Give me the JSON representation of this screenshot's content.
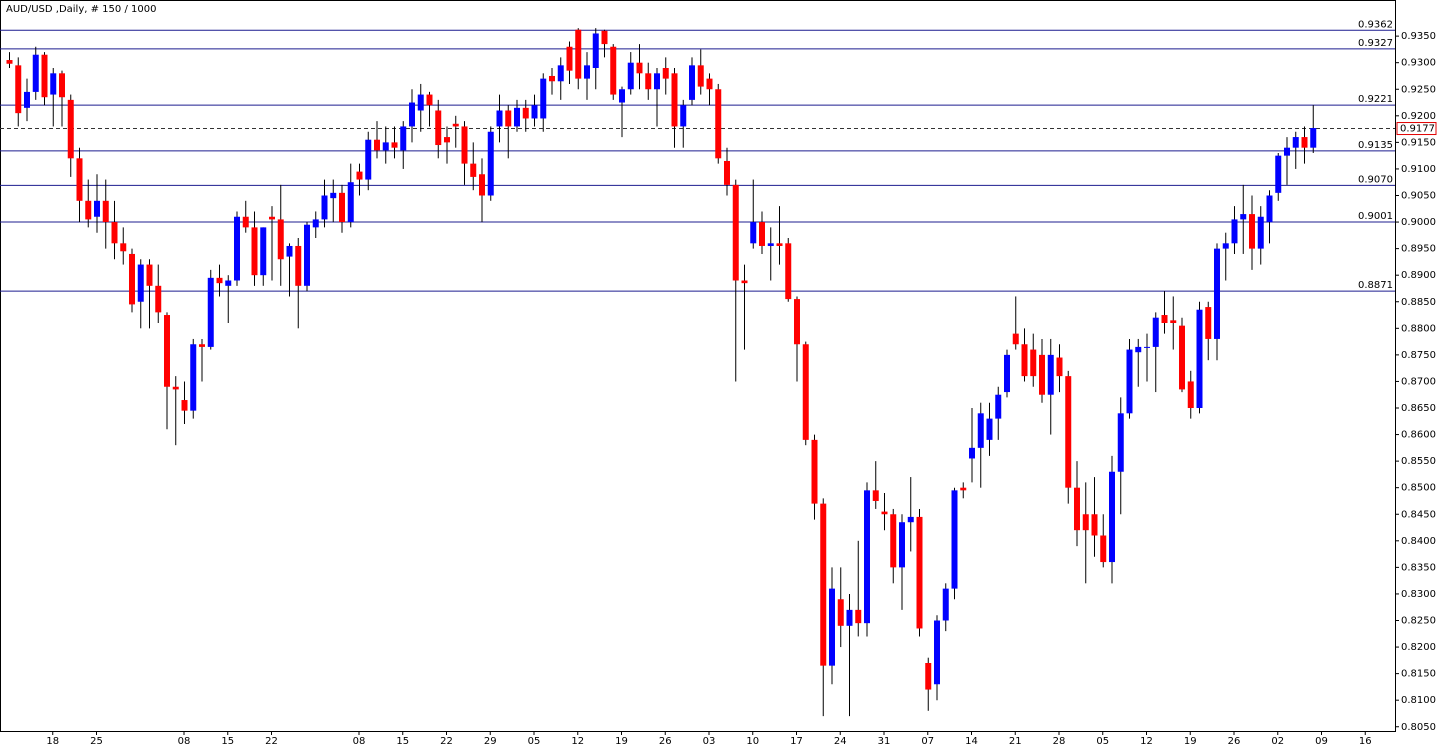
{
  "chart_data": {
    "type": "candlestick",
    "title": "AUD/USD ,Daily, # 150 / 1000",
    "categories": [
      null,
      null,
      null,
      null,
      null,
      "18",
      null,
      null,
      null,
      null,
      "25",
      null,
      null,
      null,
      null,
      null,
      null,
      null,
      null,
      null,
      "08",
      null,
      null,
      null,
      null,
      "15",
      null,
      null,
      null,
      null,
      "22",
      null,
      null,
      null,
      null,
      null,
      null,
      null,
      null,
      null,
      "08",
      null,
      null,
      null,
      null,
      "15",
      null,
      null,
      null,
      null,
      "22",
      null,
      null,
      null,
      null,
      "29",
      null,
      null,
      null,
      null,
      "05",
      null,
      null,
      null,
      null,
      "12",
      null,
      null,
      null,
      null,
      "19",
      null,
      null,
      null,
      null,
      "26",
      null,
      null,
      null,
      null,
      "03",
      null,
      null,
      null,
      null,
      "10",
      null,
      null,
      null,
      null,
      "17",
      null,
      null,
      null,
      null,
      "24",
      null,
      null,
      null,
      null,
      "31",
      null,
      null,
      null,
      null,
      "07",
      null,
      null,
      null,
      null,
      "14",
      null,
      null,
      null,
      null,
      "21",
      null,
      null,
      null,
      null,
      "28",
      null,
      null,
      null,
      null,
      "05",
      null,
      null,
      null,
      null,
      "12",
      null,
      null,
      null,
      null,
      "19",
      null,
      null,
      null,
      null,
      "26",
      null,
      null,
      null,
      null,
      "02",
      null,
      null,
      null,
      null,
      "09",
      null,
      null,
      null,
      null,
      "16"
    ],
    "open": [
      0.9305,
      0.9295,
      0.9215,
      0.9245,
      0.9315,
      0.924,
      0.928,
      0.923,
      0.912,
      0.904,
      0.901,
      0.904,
      0.9,
      0.896,
      0.894,
      0.885,
      0.892,
      0.888,
      0.8825,
      0.869,
      0.8665,
      0.8645,
      0.877,
      0.8765,
      0.8895,
      0.888,
      0.889,
      0.901,
      0.899,
      0.89,
      0.901,
      0.9005,
      0.8935,
      0.8955,
      0.888,
      0.899,
      0.9005,
      0.9045,
      0.9055,
      0.9,
      0.9095,
      0.908,
      0.9155,
      0.9135,
      0.915,
      0.9135,
      0.918,
      0.921,
      0.924,
      0.921,
      0.916,
      0.9185,
      0.918,
      0.911,
      0.909,
      0.905,
      0.918,
      0.921,
      0.918,
      0.9215,
      0.9195,
      0.9195,
      0.9275,
      0.9265,
      0.933,
      0.9362,
      0.927,
      0.929,
      0.936,
      0.933,
      0.9225,
      0.925,
      0.93,
      0.928,
      0.925,
      0.929,
      0.928,
      0.918,
      0.923,
      0.9295,
      0.927,
      0.925,
      0.9115,
      0.907,
      0.889,
      0.896,
      0.9,
      0.8955,
      0.896,
      0.896,
      0.8855,
      0.877,
      0.859,
      0.847,
      0.8165,
      0.829,
      0.824,
      0.827,
      0.8245,
      0.8495,
      0.8455,
      0.845,
      0.835,
      0.8435,
      0.8445,
      0.817,
      0.813,
      0.825,
      0.831,
      0.85,
      0.8555,
      0.8575,
      0.859,
      0.863,
      0.868,
      0.879,
      0.877,
      0.876,
      0.875,
      0.8675,
      0.8745,
      0.871,
      0.85,
      0.845,
      0.845,
      0.841,
      0.836,
      0.853,
      0.864,
      0.8755,
      0.8765,
      0.8765,
      0.8825,
      0.8815,
      0.8805,
      0.87,
      0.865,
      0.884,
      0.878,
      0.895,
      0.896,
      0.9005,
      0.9015,
      0.895,
      0.9,
      0.9055,
      0.9125,
      0.914,
      0.916,
      0.914,
      null,
      null,
      null,
      null,
      null,
      null
    ],
    "high": [
      0.932,
      0.931,
      0.927,
      0.933,
      0.932,
      0.929,
      0.9285,
      0.924,
      0.914,
      0.908,
      0.909,
      0.908,
      0.904,
      0.899,
      0.895,
      0.893,
      0.893,
      0.892,
      0.883,
      0.871,
      0.87,
      0.878,
      0.878,
      0.891,
      0.892,
      0.89,
      0.902,
      0.904,
      0.902,
      0.899,
      0.903,
      0.907,
      0.896,
      0.897,
      0.9,
      0.902,
      0.908,
      0.908,
      0.907,
      0.911,
      0.911,
      0.917,
      0.919,
      0.918,
      0.918,
      0.919,
      0.925,
      0.926,
      0.9245,
      0.923,
      0.918,
      0.92,
      0.919,
      0.915,
      0.912,
      0.918,
      0.924,
      0.922,
      0.923,
      0.923,
      0.924,
      0.928,
      0.929,
      0.931,
      0.934,
      0.9365,
      0.932,
      0.9365,
      0.9362,
      0.9335,
      0.9255,
      0.932,
      0.9335,
      0.93,
      0.929,
      0.931,
      0.929,
      0.923,
      0.931,
      0.9325,
      0.928,
      0.926,
      0.914,
      0.908,
      0.892,
      0.908,
      0.902,
      0.899,
      0.903,
      0.897,
      0.886,
      0.8775,
      0.86,
      0.848,
      0.835,
      0.835,
      0.83,
      0.84,
      0.851,
      0.855,
      0.849,
      0.846,
      0.845,
      0.852,
      0.846,
      0.818,
      0.826,
      0.832,
      0.85,
      0.851,
      0.865,
      0.866,
      0.866,
      0.869,
      0.876,
      0.886,
      0.88,
      0.879,
      0.878,
      0.878,
      0.877,
      0.872,
      0.855,
      0.851,
      0.852,
      0.845,
      0.856,
      0.867,
      0.878,
      0.878,
      0.879,
      0.883,
      0.887,
      0.886,
      0.882,
      0.872,
      0.885,
      0.885,
      0.896,
      0.898,
      0.903,
      0.907,
      0.905,
      0.903,
      0.906,
      0.913,
      0.916,
      0.917,
      0.918,
      0.922,
      null,
      null,
      null,
      null,
      null,
      null
    ],
    "low": [
      0.929,
      0.918,
      0.919,
      0.923,
      0.922,
      0.918,
      0.918,
      0.9085,
      0.9,
      0.899,
      0.898,
      0.895,
      0.893,
      0.892,
      0.883,
      0.88,
      0.88,
      0.881,
      0.861,
      0.858,
      0.862,
      0.863,
      0.87,
      0.876,
      0.886,
      0.881,
      0.888,
      0.898,
      0.888,
      0.888,
      0.889,
      0.888,
      0.886,
      0.88,
      0.887,
      0.897,
      0.899,
      0.9,
      0.898,
      0.899,
      0.905,
      0.906,
      0.912,
      0.911,
      0.912,
      0.91,
      0.915,
      0.917,
      0.918,
      0.912,
      0.911,
      0.914,
      0.907,
      0.906,
      0.9,
      0.904,
      0.915,
      0.912,
      0.917,
      0.917,
      0.918,
      0.917,
      0.924,
      0.923,
      0.926,
      0.925,
      0.923,
      0.925,
      0.931,
      0.923,
      0.916,
      0.924,
      0.925,
      0.923,
      0.918,
      0.924,
      0.914,
      0.914,
      0.922,
      0.924,
      0.922,
      0.911,
      0.905,
      0.87,
      0.876,
      0.895,
      0.894,
      0.889,
      0.892,
      0.885,
      0.87,
      0.858,
      0.844,
      0.807,
      0.813,
      0.82,
      0.807,
      0.822,
      0.822,
      0.846,
      0.842,
      0.832,
      0.827,
      0.838,
      0.822,
      0.808,
      0.81,
      0.823,
      0.829,
      0.848,
      0.851,
      0.85,
      0.856,
      0.859,
      0.867,
      0.876,
      0.87,
      0.869,
      0.866,
      0.86,
      0.868,
      0.847,
      0.839,
      0.832,
      0.837,
      0.835,
      0.832,
      0.845,
      0.863,
      0.869,
      0.87,
      0.868,
      0.879,
      0.876,
      0.868,
      0.863,
      0.864,
      0.874,
      0.874,
      0.889,
      0.894,
      0.894,
      0.891,
      0.892,
      0.896,
      0.904,
      0.907,
      0.91,
      0.911,
      0.913,
      null,
      null,
      null,
      null,
      null,
      null
    ],
    "close": [
      0.9298,
      0.9205,
      0.9245,
      0.9315,
      0.9235,
      0.928,
      0.9235,
      0.912,
      0.904,
      0.9005,
      0.904,
      0.9,
      0.896,
      0.8945,
      0.8845,
      0.892,
      0.888,
      0.883,
      0.869,
      0.8685,
      0.8645,
      0.877,
      0.8765,
      0.8895,
      0.8885,
      0.889,
      0.901,
      0.899,
      0.89,
      0.899,
      0.9005,
      0.893,
      0.8955,
      0.888,
      0.8995,
      0.9005,
      0.905,
      0.9055,
      0.9,
      0.9075,
      0.908,
      0.9155,
      0.9135,
      0.915,
      0.914,
      0.918,
      0.9225,
      0.924,
      0.922,
      0.9145,
      0.915,
      0.918,
      0.911,
      0.9085,
      0.905,
      0.917,
      0.921,
      0.918,
      0.9215,
      0.9195,
      0.922,
      0.927,
      0.9265,
      0.9295,
      0.9285,
      0.927,
      0.9295,
      0.9355,
      0.9335,
      0.924,
      0.925,
      0.93,
      0.928,
      0.925,
      0.928,
      0.927,
      0.918,
      0.922,
      0.9295,
      0.9255,
      0.925,
      0.912,
      0.907,
      0.889,
      0.8885,
      0.9,
      0.8955,
      0.896,
      0.8955,
      0.8855,
      0.877,
      0.859,
      0.847,
      0.8165,
      0.831,
      0.824,
      0.827,
      0.8245,
      0.8495,
      0.8475,
      0.845,
      0.835,
      0.8435,
      0.8445,
      0.8235,
      0.812,
      0.825,
      0.831,
      0.8495,
      0.8495,
      0.8575,
      0.864,
      0.863,
      0.8675,
      0.875,
      0.877,
      0.871,
      0.871,
      0.8675,
      0.875,
      0.871,
      0.85,
      0.842,
      0.842,
      0.841,
      0.836,
      0.853,
      0.864,
      0.876,
      0.8765,
      0.8765,
      0.882,
      0.881,
      0.881,
      0.8685,
      0.865,
      0.8835,
      0.878,
      0.895,
      0.896,
      0.9005,
      0.9015,
      0.895,
      0.901,
      0.905,
      0.9125,
      0.914,
      0.916,
      0.914,
      0.9177,
      null,
      null,
      null,
      null,
      null,
      null
    ],
    "up_color": "#0000ff",
    "down_color": "#ff0000",
    "wick_color": "#000000",
    "ylim": [
      0.8042,
      0.9418
    ],
    "yticks": [
      {
        "value": 0.805,
        "label": "0.8050"
      },
      {
        "value": 0.81,
        "label": "0.8100"
      },
      {
        "value": 0.815,
        "label": "0.8150"
      },
      {
        "value": 0.82,
        "label": "0.8200"
      },
      {
        "value": 0.825,
        "label": "0.8250"
      },
      {
        "value": 0.83,
        "label": "0.8300"
      },
      {
        "value": 0.835,
        "label": "0.8350"
      },
      {
        "value": 0.84,
        "label": "0.8400"
      },
      {
        "value": 0.845,
        "label": "0.8450"
      },
      {
        "value": 0.85,
        "label": "0.8500"
      },
      {
        "value": 0.855,
        "label": "0.8550"
      },
      {
        "value": 0.86,
        "label": "0.8600"
      },
      {
        "value": 0.865,
        "label": "0.8650"
      },
      {
        "value": 0.87,
        "label": "0.8700"
      },
      {
        "value": 0.875,
        "label": "0.8750"
      },
      {
        "value": 0.88,
        "label": "0.8800"
      },
      {
        "value": 0.885,
        "label": "0.8850"
      },
      {
        "value": 0.89,
        "label": "0.8900"
      },
      {
        "value": 0.895,
        "label": "0.8950"
      },
      {
        "value": 0.9,
        "label": "0.9000"
      },
      {
        "value": 0.905,
        "label": "0.9050"
      },
      {
        "value": 0.91,
        "label": "0.9100"
      },
      {
        "value": 0.915,
        "label": "0.9150"
      },
      {
        "value": 0.92,
        "label": "0.9200"
      },
      {
        "value": 0.925,
        "label": "0.9250"
      },
      {
        "value": 0.93,
        "label": "0.9300"
      },
      {
        "value": 0.935,
        "label": "0.9350"
      }
    ],
    "levels": [
      0.9362,
      0.9327,
      0.9221,
      0.9135,
      {
        "value": 0.907,
        "label": "0.9070"
      },
      0.9001,
      0.8871
    ],
    "level_color": "#1c1c8f",
    "last_price": 0.9177,
    "last_price_color": "#e00000"
  }
}
